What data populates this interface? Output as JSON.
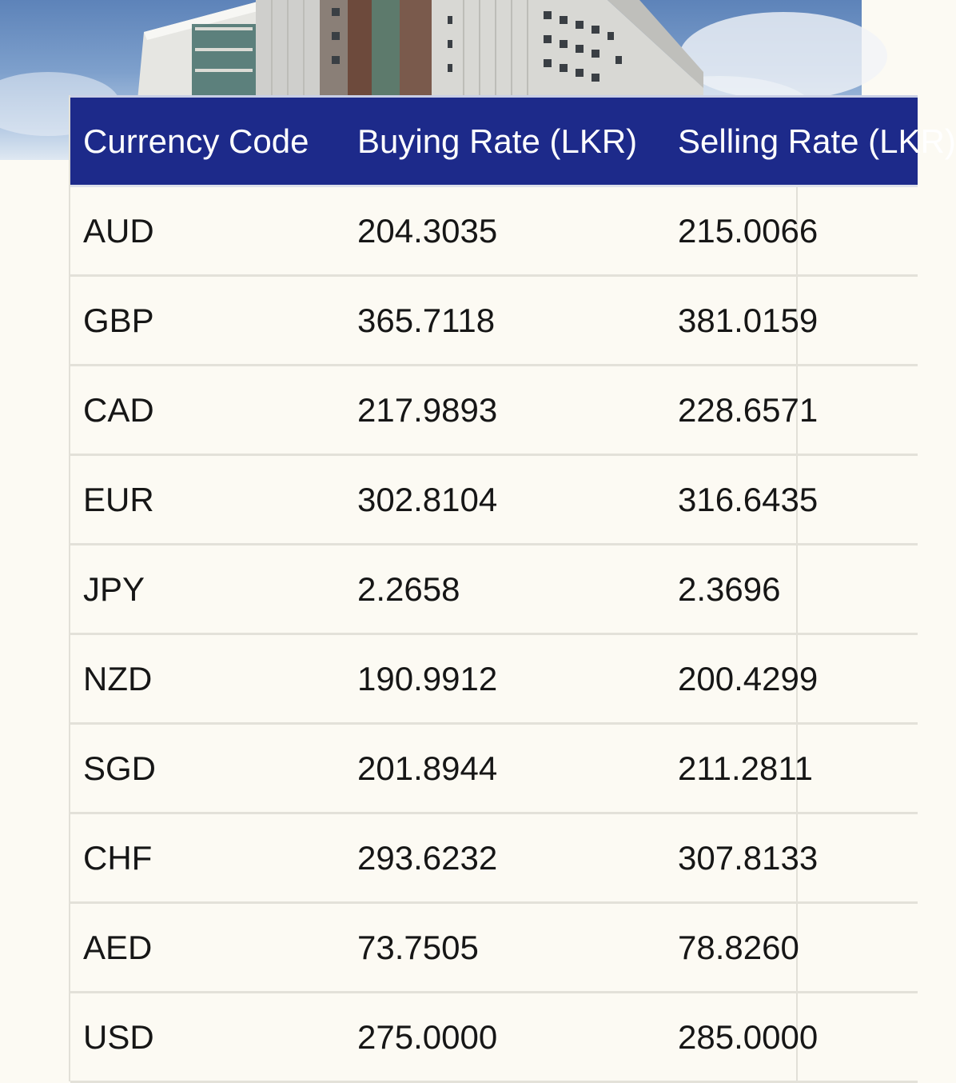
{
  "table": {
    "headers": [
      "Currency Code",
      "Buying Rate (LKR)",
      "Selling Rate (LKR)"
    ],
    "rows": [
      [
        "AUD",
        "204.3035",
        "215.0066"
      ],
      [
        "GBP",
        "365.7118",
        "381.0159"
      ],
      [
        "CAD",
        "217.9893",
        "228.6571"
      ],
      [
        "EUR",
        "302.8104",
        "316.6435"
      ],
      [
        "JPY",
        "2.2658",
        "2.3696"
      ],
      [
        "NZD",
        "190.9912",
        "200.4299"
      ],
      [
        "SGD",
        "201.8944",
        "211.2811"
      ],
      [
        "CHF",
        "293.6232",
        "307.8133"
      ],
      [
        "AED",
        "73.7505",
        "78.8260"
      ],
      [
        "USD",
        "275.0000",
        "285.0000"
      ]
    ]
  },
  "colors": {
    "header_bg": "#1d2a8a",
    "page_bg": "#fcfaf3",
    "row_divider": "#e3e1d9"
  }
}
